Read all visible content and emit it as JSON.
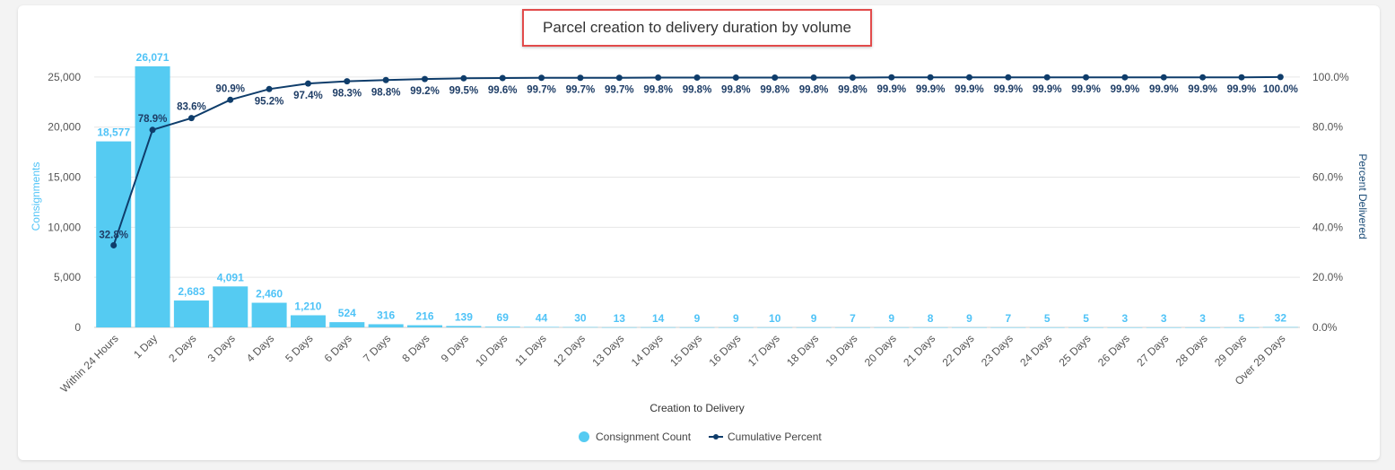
{
  "colors": {
    "bar": "#55cbf2",
    "line": "#0f3d6b",
    "grid": "#e6e6e6"
  },
  "chart_data": {
    "type": "bar",
    "title": "Parcel creation to delivery duration by volume",
    "xlabel": "Creation to Delivery",
    "ylabel": "Consignments",
    "y2label": "Percent Delivered",
    "ylim": [
      0,
      27500
    ],
    "y2lim": [
      0,
      110
    ],
    "yticks": [
      "0",
      "5,000",
      "10,000",
      "15,000",
      "20,000",
      "25,000"
    ],
    "y2ticks": [
      "0.0%",
      "20.0%",
      "40.0%",
      "60.0%",
      "80.0%",
      "100.0%"
    ],
    "categories": [
      "Within 24 Hours",
      "1 Day",
      "2 Days",
      "3 Days",
      "4 Days",
      "5 Days",
      "6 Days",
      "7 Days",
      "8 Days",
      "9 Days",
      "10 Days",
      "11 Days",
      "12 Days",
      "13 Days",
      "14 Days",
      "15 Days",
      "16 Days",
      "17 Days",
      "18 Days",
      "19 Days",
      "20 Days",
      "21 Days",
      "22 Days",
      "23 Days",
      "24 Days",
      "25 Days",
      "26 Days",
      "27 Days",
      "28 Days",
      "29 Days",
      "Over 29 Days"
    ],
    "series": [
      {
        "name": "Consignment Count",
        "type": "bar",
        "values": [
          18577,
          26071,
          2683,
          4091,
          2460,
          1210,
          524,
          316,
          216,
          139,
          69,
          44,
          30,
          13,
          14,
          9,
          9,
          10,
          9,
          7,
          9,
          8,
          9,
          7,
          5,
          5,
          3,
          3,
          3,
          5,
          32
        ],
        "labels": [
          "18,577",
          "26,071",
          "2,683",
          "4,091",
          "2,460",
          "1,210",
          "524",
          "316",
          "216",
          "139",
          "69",
          "44",
          "30",
          "13",
          "14",
          "9",
          "9",
          "10",
          "9",
          "7",
          "9",
          "8",
          "9",
          "7",
          "5",
          "5",
          "3",
          "3",
          "3",
          "5",
          "32"
        ]
      },
      {
        "name": "Cumulative Percent",
        "type": "line",
        "axis": "right",
        "values": [
          32.8,
          78.9,
          83.6,
          90.9,
          95.2,
          97.4,
          98.3,
          98.8,
          99.2,
          99.5,
          99.6,
          99.7,
          99.7,
          99.7,
          99.8,
          99.8,
          99.8,
          99.8,
          99.8,
          99.8,
          99.9,
          99.9,
          99.9,
          99.9,
          99.9,
          99.9,
          99.9,
          99.9,
          99.9,
          99.9,
          100.0
        ],
        "labels": [
          "32.8%",
          "78.9%",
          "83.6%",
          "90.9%",
          "95.2%",
          "97.4%",
          "98.3%",
          "98.8%",
          "99.2%",
          "99.5%",
          "99.6%",
          "99.7%",
          "99.7%",
          "99.7%",
          "99.8%",
          "99.8%",
          "99.8%",
          "99.8%",
          "99.8%",
          "99.8%",
          "99.9%",
          "99.9%",
          "99.9%",
          "99.9%",
          "99.9%",
          "99.9%",
          "99.9%",
          "99.9%",
          "99.9%",
          "99.9%",
          "100.0%"
        ]
      }
    ],
    "legend": [
      "Consignment Count",
      "Cumulative Percent"
    ],
    "legend_position": "bottom",
    "grid": true
  }
}
